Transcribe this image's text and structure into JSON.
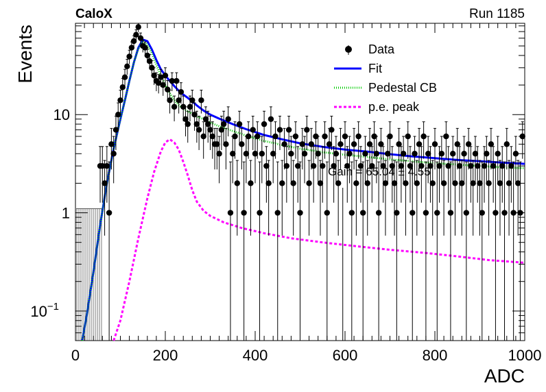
{
  "header": {
    "experiment": "CaloX",
    "run": "Run 1185"
  },
  "chart_data": {
    "type": "scatter",
    "title": "",
    "xlabel": "ADC",
    "ylabel": "Events",
    "xlim": [
      0,
      1000
    ],
    "ylim": [
      0.05,
      85
    ],
    "y_scale": "log",
    "x_ticks": [
      0,
      200,
      400,
      600,
      800,
      1000
    ],
    "y_ticks": [
      {
        "value": 0.1,
        "label": "10^-1"
      },
      {
        "value": 1,
        "label": "1"
      },
      {
        "value": 10,
        "label": "10"
      }
    ],
    "grid": false,
    "legend_position": "top-right",
    "legend": [
      {
        "label": "Data",
        "style": "marker",
        "color": "#000000"
      },
      {
        "label": "Fit",
        "style": "solid",
        "color": "#0000ff"
      },
      {
        "label": "Pedestal CB",
        "style": "dotted",
        "color": "#00cc00"
      },
      {
        "label": "p.e. peak",
        "style": "dashed",
        "color": "#ff00ff"
      }
    ],
    "annotations": [
      "Gain = 65.04 ± 4.55"
    ],
    "series": [
      {
        "name": "Data",
        "kind": "points_with_errors",
        "color": "#000000",
        "x": [
          55,
          60,
          65,
          70,
          75,
          80,
          85,
          90,
          95,
          100,
          105,
          110,
          115,
          120,
          125,
          130,
          135,
          140,
          145,
          150,
          155,
          160,
          165,
          170,
          175,
          180,
          185,
          190,
          195,
          200,
          205,
          210,
          215,
          220,
          225,
          230,
          235,
          240,
          245,
          250,
          255,
          260,
          265,
          270,
          275,
          280,
          285,
          290,
          295,
          300,
          305,
          310,
          315,
          320,
          325,
          330,
          335,
          340,
          345,
          350,
          355,
          360,
          365,
          370,
          375,
          380,
          385,
          390,
          395,
          400,
          405,
          410,
          415,
          420,
          425,
          430,
          435,
          440,
          445,
          450,
          455,
          460,
          465,
          470,
          475,
          480,
          485,
          490,
          495,
          500,
          505,
          510,
          515,
          520,
          525,
          530,
          535,
          540,
          545,
          550,
          555,
          560,
          565,
          570,
          575,
          580,
          585,
          590,
          595,
          600,
          605,
          610,
          615,
          620,
          625,
          630,
          635,
          640,
          645,
          650,
          655,
          660,
          665,
          670,
          675,
          680,
          685,
          690,
          695,
          700,
          705,
          710,
          715,
          720,
          725,
          730,
          735,
          740,
          745,
          750,
          755,
          760,
          765,
          770,
          775,
          780,
          785,
          790,
          795,
          800,
          805,
          810,
          815,
          820,
          825,
          830,
          835,
          840,
          845,
          850,
          855,
          860,
          865,
          870,
          875,
          880,
          885,
          890,
          895,
          900,
          905,
          910,
          915,
          920,
          925,
          930,
          935,
          940,
          945,
          950,
          955,
          960,
          965,
          970,
          975,
          980,
          985,
          990,
          995
        ],
        "y": [
          3,
          3,
          2,
          3,
          1,
          5,
          4,
          7,
          10,
          14,
          19,
          24,
          31,
          39,
          48,
          56,
          65,
          78,
          60,
          50,
          48,
          40,
          35,
          30,
          25,
          22,
          21,
          24,
          20,
          25,
          18,
          14,
          22,
          12,
          22,
          14,
          17,
          12,
          9,
          8,
          12,
          14,
          10,
          8,
          7,
          14,
          6,
          9,
          8,
          7,
          6,
          5,
          5,
          4,
          7,
          8,
          5,
          9,
          1,
          4,
          6,
          2,
          8,
          5,
          1,
          4,
          6,
          2,
          7,
          4,
          6,
          1,
          4,
          8,
          3,
          2,
          9,
          4,
          6,
          1,
          7,
          2,
          5,
          3,
          7,
          4,
          2,
          6,
          3,
          1,
          5,
          4,
          7,
          2,
          5,
          3,
          6,
          4,
          2,
          3,
          6,
          1,
          5,
          7,
          3,
          4,
          2,
          5,
          0,
          6,
          3,
          4,
          1,
          5,
          2,
          6,
          3,
          1,
          4,
          2,
          5,
          3,
          6,
          4,
          1,
          5,
          3,
          2,
          4,
          6,
          3,
          2,
          1,
          5,
          3,
          4,
          2,
          6,
          3,
          1,
          4,
          2,
          5,
          3,
          6,
          1,
          4,
          3,
          2,
          5,
          1,
          3,
          4,
          2,
          6,
          3,
          1,
          4,
          2,
          5,
          3,
          2,
          4,
          1,
          5,
          3,
          2,
          4,
          3,
          2,
          1,
          3,
          4,
          2,
          5,
          3,
          1,
          4,
          2,
          3,
          1,
          5,
          2,
          3,
          1,
          4,
          2,
          1,
          6
        ]
      },
      {
        "name": "Fit",
        "kind": "line",
        "color": "#0000ff",
        "x": [
          15,
          25,
          40,
          55,
          70,
          85,
          100,
          110,
          120,
          130,
          140,
          150,
          160,
          170,
          180,
          190,
          200,
          210,
          220,
          230,
          240,
          250,
          260,
          270,
          285,
          300,
          320,
          350,
          380,
          420,
          460,
          500,
          550,
          600,
          650,
          700,
          750,
          800,
          850,
          900,
          950,
          1000
        ],
        "y": [
          0.05,
          0.09,
          0.25,
          0.75,
          2.0,
          4.5,
          9,
          14,
          22,
          34,
          48,
          58,
          56,
          46,
          36,
          29,
          25,
          22,
          19.5,
          17.5,
          16,
          14.8,
          13.6,
          12.4,
          11,
          10,
          9.1,
          8.0,
          7.1,
          6.2,
          5.6,
          5.1,
          4.7,
          4.4,
          4.2,
          3.95,
          3.75,
          3.6,
          3.45,
          3.35,
          3.25,
          3.15
        ]
      },
      {
        "name": "Pedestal CB",
        "kind": "line",
        "color": "#00cc00",
        "x": [
          15,
          25,
          40,
          55,
          70,
          85,
          100,
          110,
          120,
          130,
          140,
          150,
          160,
          170,
          180,
          190,
          200,
          210,
          220,
          230,
          240,
          250,
          260,
          270,
          285,
          300,
          320,
          350,
          380,
          420,
          460,
          500,
          550,
          600,
          650,
          700,
          750,
          800,
          850,
          900,
          950,
          1000
        ],
        "y": [
          0.05,
          0.09,
          0.25,
          0.75,
          2.0,
          4.5,
          9,
          14,
          22,
          34,
          47,
          56,
          52,
          42,
          32,
          25,
          20,
          16.5,
          14,
          12.5,
          11.5,
          10.8,
          10.2,
          9.6,
          9.0,
          8.3,
          7.6,
          6.8,
          6.1,
          5.4,
          4.9,
          4.5,
          4.15,
          3.9,
          3.7,
          3.5,
          3.35,
          3.2,
          3.1,
          3.0,
          2.9,
          2.85
        ]
      },
      {
        "name": "p.e. peak",
        "kind": "line",
        "color": "#ff00ff",
        "x": [
          85,
          100,
          120,
          140,
          160,
          175,
          190,
          200,
          210,
          220,
          230,
          240,
          250,
          260,
          270,
          285,
          300,
          330,
          370,
          420,
          480,
          550,
          620,
          700,
          780,
          850,
          920,
          1000
        ],
        "y": [
          0.05,
          0.08,
          0.2,
          0.55,
          1.4,
          2.6,
          4.2,
          5.2,
          5.6,
          5.2,
          4.4,
          3.3,
          2.4,
          1.7,
          1.3,
          1.05,
          0.93,
          0.8,
          0.7,
          0.62,
          0.55,
          0.5,
          0.46,
          0.42,
          0.39,
          0.36,
          0.33,
          0.31
        ]
      }
    ]
  }
}
